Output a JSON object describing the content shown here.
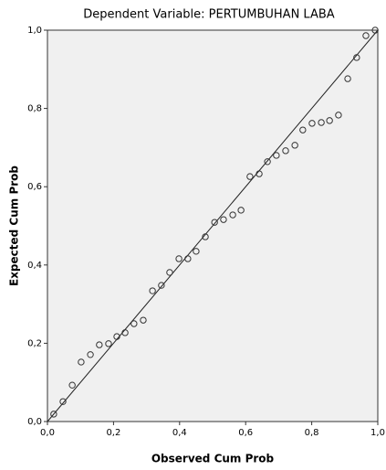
{
  "chart_data": {
    "type": "scatter",
    "title": "Dependent Variable: PERTUMBUHAN LABA",
    "xlabel": "Observed Cum Prob",
    "ylabel": "Expected Cum Prob",
    "x": [
      0.019,
      0.047,
      0.075,
      0.102,
      0.13,
      0.157,
      0.185,
      0.21,
      0.235,
      0.262,
      0.29,
      0.318,
      0.345,
      0.37,
      0.398,
      0.425,
      0.45,
      0.478,
      0.506,
      0.533,
      0.561,
      0.586,
      0.613,
      0.641,
      0.666,
      0.693,
      0.721,
      0.749,
      0.773,
      0.801,
      0.829,
      0.854,
      0.881,
      0.909,
      0.936,
      0.964,
      0.992
    ],
    "values": [
      0.019,
      0.051,
      0.093,
      0.152,
      0.171,
      0.196,
      0.199,
      0.217,
      0.227,
      0.25,
      0.259,
      0.334,
      0.348,
      0.381,
      0.416,
      0.416,
      0.435,
      0.472,
      0.509,
      0.516,
      0.528,
      0.54,
      0.626,
      0.633,
      0.664,
      0.68,
      0.692,
      0.706,
      0.745,
      0.762,
      0.764,
      0.769,
      0.783,
      0.876,
      0.93,
      0.986,
      1.0
    ],
    "color": "#333333",
    "xlim": [
      0,
      1
    ],
    "ylim": [
      0,
      1
    ],
    "xticks": [
      {
        "value": 0,
        "label": "0,0"
      },
      {
        "value": 0.2,
        "label": "0,2"
      },
      {
        "value": 0.4,
        "label": "0,4"
      },
      {
        "value": 0.6,
        "label": "0,6"
      },
      {
        "value": 0.8,
        "label": "0,8"
      },
      {
        "value": 1,
        "label": "1,0"
      }
    ],
    "yticks": [
      {
        "value": 0,
        "label": "0,0"
      },
      {
        "value": 0.2,
        "label": "0,2"
      },
      {
        "value": 0.4,
        "label": "0,4"
      },
      {
        "value": 0.6,
        "label": "0,6"
      },
      {
        "value": 0.8,
        "label": "0,8"
      },
      {
        "value": 1,
        "label": "1,0"
      }
    ]
  }
}
